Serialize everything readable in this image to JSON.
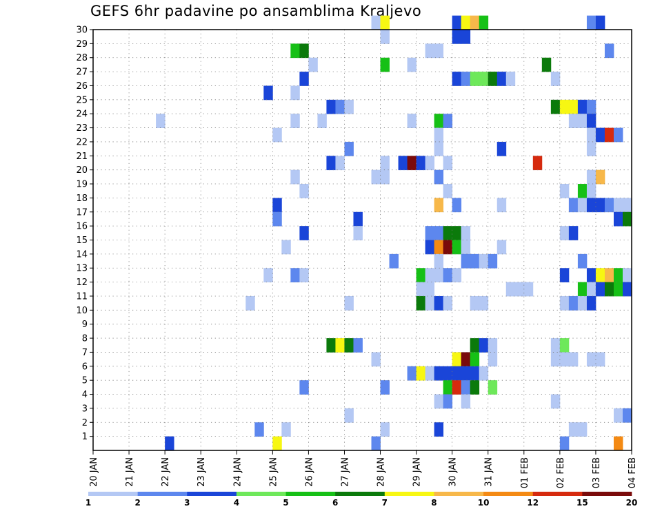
{
  "chart_data": {
    "type": "heatmap",
    "title": "GEFS 6hr padavine po ansamblima Kraljevo",
    "xlabel": "",
    "ylabel": "",
    "x_tick_labels": [
      "20 JAN",
      "21 JAN",
      "22 JAN",
      "23 JAN",
      "24 JAN",
      "25 JAN",
      "26 JAN",
      "27 JAN",
      "28 JAN",
      "29 JAN",
      "30 JAN",
      "31 JAN",
      "01 FEB",
      "02 FEB",
      "03 FEB",
      "04 FEB"
    ],
    "y_tick_labels": [
      "1",
      "2",
      "3",
      "4",
      "5",
      "6",
      "7",
      "8",
      "9",
      "10",
      "11",
      "12",
      "13",
      "14",
      "15",
      "16",
      "17",
      "18",
      "19",
      "20",
      "21",
      "22",
      "23",
      "24",
      "25",
      "26",
      "27",
      "28",
      "29",
      "30"
    ],
    "x_range_hours": [
      0,
      360
    ],
    "time_step_hours": 6,
    "y_range": [
      0,
      30
    ],
    "grid": true,
    "colorbar": {
      "labels": [
        "1",
        "2",
        "3",
        "4",
        "5",
        "6",
        "7",
        "8",
        "10",
        "12",
        "15",
        "20"
      ],
      "colors": [
        "#b4c8f4",
        "#5d87ee",
        "#1a45d8",
        "#6ee85a",
        "#16c016",
        "#0b7a0b",
        "#f7f712",
        "#f7b84a",
        "#f48a14",
        "#d62a0e",
        "#7a0b0b"
      ]
    },
    "units_note": "each cell: [member, step (6h steps from 20 JAN 00Z), class index into colorbar.colors]",
    "cells": [
      [
        30,
        31,
        0
      ],
      [
        30,
        32,
        6
      ],
      [
        30,
        40,
        2
      ],
      [
        30,
        41,
        6
      ],
      [
        30,
        42,
        7
      ],
      [
        30,
        43,
        4
      ],
      [
        30,
        55,
        1
      ],
      [
        30,
        56,
        2
      ],
      [
        29,
        32,
        0
      ],
      [
        29,
        40,
        2
      ],
      [
        29,
        41,
        2
      ],
      [
        28,
        22,
        4
      ],
      [
        28,
        23,
        5
      ],
      [
        28,
        37,
        0
      ],
      [
        28,
        38,
        0
      ],
      [
        28,
        57,
        1
      ],
      [
        27,
        24,
        0
      ],
      [
        27,
        32,
        4
      ],
      [
        27,
        35,
        0
      ],
      [
        27,
        50,
        5
      ],
      [
        26,
        23,
        2
      ],
      [
        26,
        40,
        2
      ],
      [
        26,
        41,
        1
      ],
      [
        26,
        42,
        3
      ],
      [
        26,
        43,
        3
      ],
      [
        26,
        44,
        5
      ],
      [
        26,
        45,
        2
      ],
      [
        26,
        46,
        0
      ],
      [
        26,
        51,
        0
      ],
      [
        25,
        19,
        2
      ],
      [
        25,
        22,
        0
      ],
      [
        24,
        26,
        2
      ],
      [
        24,
        27,
        1
      ],
      [
        24,
        28,
        0
      ],
      [
        24,
        51,
        5
      ],
      [
        24,
        52,
        6
      ],
      [
        24,
        53,
        6
      ],
      [
        24,
        54,
        2
      ],
      [
        24,
        55,
        1
      ],
      [
        23,
        7,
        0
      ],
      [
        23,
        22,
        0
      ],
      [
        23,
        25,
        0
      ],
      [
        23,
        35,
        0
      ],
      [
        23,
        38,
        4
      ],
      [
        23,
        39,
        1
      ],
      [
        23,
        53,
        0
      ],
      [
        23,
        54,
        0
      ],
      [
        23,
        55,
        2
      ],
      [
        22,
        20,
        0
      ],
      [
        22,
        38,
        0
      ],
      [
        22,
        55,
        0
      ],
      [
        22,
        56,
        2
      ],
      [
        22,
        57,
        9
      ],
      [
        22,
        58,
        1
      ],
      [
        21,
        28,
        1
      ],
      [
        21,
        38,
        0
      ],
      [
        21,
        45,
        2
      ],
      [
        21,
        55,
        0
      ],
      [
        20,
        26,
        2
      ],
      [
        20,
        27,
        0
      ],
      [
        20,
        32,
        0
      ],
      [
        20,
        34,
        2
      ],
      [
        20,
        35,
        10
      ],
      [
        20,
        36,
        2
      ],
      [
        20,
        37,
        0
      ],
      [
        20,
        39,
        0
      ],
      [
        20,
        49,
        9
      ],
      [
        19,
        22,
        0
      ],
      [
        19,
        31,
        0
      ],
      [
        19,
        32,
        0
      ],
      [
        19,
        38,
        1
      ],
      [
        19,
        55,
        0
      ],
      [
        19,
        56,
        7
      ],
      [
        18,
        23,
        0
      ],
      [
        18,
        39,
        0
      ],
      [
        18,
        52,
        0
      ],
      [
        18,
        54,
        4
      ],
      [
        18,
        55,
        0
      ],
      [
        17,
        20,
        2
      ],
      [
        17,
        38,
        7
      ],
      [
        17,
        40,
        1
      ],
      [
        17,
        45,
        0
      ],
      [
        17,
        53,
        1
      ],
      [
        17,
        54,
        0
      ],
      [
        17,
        55,
        2
      ],
      [
        17,
        56,
        2
      ],
      [
        17,
        57,
        1
      ],
      [
        17,
        58,
        0
      ],
      [
        17,
        59,
        0
      ],
      [
        16,
        20,
        1
      ],
      [
        16,
        29,
        2
      ],
      [
        16,
        58,
        2
      ],
      [
        16,
        59,
        5
      ],
      [
        15,
        23,
        2
      ],
      [
        15,
        29,
        0
      ],
      [
        15,
        37,
        1
      ],
      [
        15,
        38,
        1
      ],
      [
        15,
        39,
        5
      ],
      [
        15,
        40,
        5
      ],
      [
        15,
        41,
        0
      ],
      [
        15,
        52,
        0
      ],
      [
        15,
        53,
        2
      ],
      [
        14,
        21,
        0
      ],
      [
        14,
        37,
        2
      ],
      [
        14,
        38,
        8
      ],
      [
        14,
        39,
        10
      ],
      [
        14,
        40,
        4
      ],
      [
        14,
        41,
        0
      ],
      [
        14,
        45,
        0
      ],
      [
        13,
        33,
        1
      ],
      [
        13,
        38,
        0
      ],
      [
        13,
        41,
        1
      ],
      [
        13,
        42,
        1
      ],
      [
        13,
        43,
        0
      ],
      [
        13,
        44,
        1
      ],
      [
        13,
        54,
        1
      ],
      [
        12,
        19,
        0
      ],
      [
        12,
        22,
        1
      ],
      [
        12,
        23,
        0
      ],
      [
        12,
        36,
        4
      ],
      [
        12,
        37,
        0
      ],
      [
        12,
        38,
        0
      ],
      [
        12,
        39,
        1
      ],
      [
        12,
        40,
        0
      ],
      [
        12,
        52,
        2
      ],
      [
        12,
        55,
        2
      ],
      [
        12,
        56,
        6
      ],
      [
        12,
        57,
        7
      ],
      [
        12,
        58,
        4
      ],
      [
        12,
        59,
        0
      ],
      [
        11,
        36,
        0
      ],
      [
        11,
        37,
        0
      ],
      [
        11,
        46,
        0
      ],
      [
        11,
        47,
        0
      ],
      [
        11,
        48,
        0
      ],
      [
        11,
        54,
        4
      ],
      [
        11,
        55,
        0
      ],
      [
        11,
        56,
        2
      ],
      [
        11,
        57,
        5
      ],
      [
        11,
        58,
        4
      ],
      [
        11,
        59,
        2
      ],
      [
        10,
        17,
        0
      ],
      [
        10,
        28,
        0
      ],
      [
        10,
        36,
        5
      ],
      [
        10,
        37,
        0
      ],
      [
        10,
        38,
        2
      ],
      [
        10,
        39,
        0
      ],
      [
        10,
        42,
        0
      ],
      [
        10,
        43,
        0
      ],
      [
        10,
        52,
        0
      ],
      [
        10,
        53,
        1
      ],
      [
        10,
        54,
        0
      ],
      [
        10,
        55,
        2
      ],
      [
        7,
        26,
        5
      ],
      [
        7,
        27,
        6
      ],
      [
        7,
        28,
        5
      ],
      [
        7,
        29,
        1
      ],
      [
        7,
        42,
        5
      ],
      [
        7,
        43,
        2
      ],
      [
        7,
        44,
        0
      ],
      [
        7,
        51,
        0
      ],
      [
        7,
        52,
        3
      ],
      [
        6,
        31,
        0
      ],
      [
        6,
        40,
        6
      ],
      [
        6,
        41,
        10
      ],
      [
        6,
        42,
        4
      ],
      [
        6,
        44,
        0
      ],
      [
        6,
        51,
        0
      ],
      [
        6,
        52,
        0
      ],
      [
        6,
        53,
        0
      ],
      [
        6,
        55,
        0
      ],
      [
        6,
        56,
        0
      ],
      [
        5,
        35,
        1
      ],
      [
        5,
        36,
        6
      ],
      [
        5,
        37,
        0
      ],
      [
        5,
        38,
        2
      ],
      [
        5,
        39,
        2
      ],
      [
        5,
        40,
        2
      ],
      [
        5,
        41,
        2
      ],
      [
        5,
        42,
        2
      ],
      [
        5,
        43,
        0
      ],
      [
        4,
        23,
        1
      ],
      [
        4,
        32,
        1
      ],
      [
        4,
        39,
        4
      ],
      [
        4,
        40,
        9
      ],
      [
        4,
        41,
        1
      ],
      [
        4,
        42,
        5
      ],
      [
        4,
        44,
        3
      ],
      [
        3,
        38,
        0
      ],
      [
        3,
        39,
        1
      ],
      [
        3,
        41,
        0
      ],
      [
        3,
        51,
        0
      ],
      [
        2,
        28,
        0
      ],
      [
        2,
        58,
        0
      ],
      [
        2,
        59,
        1
      ],
      [
        1,
        18,
        1
      ],
      [
        1,
        21,
        0
      ],
      [
        1,
        32,
        0
      ],
      [
        1,
        38,
        2
      ],
      [
        1,
        53,
        0
      ],
      [
        1,
        54,
        0
      ],
      [
        0,
        8,
        2
      ],
      [
        0,
        20,
        6
      ],
      [
        0,
        31,
        1
      ],
      [
        0,
        52,
        1
      ],
      [
        0,
        58,
        8
      ]
    ]
  }
}
